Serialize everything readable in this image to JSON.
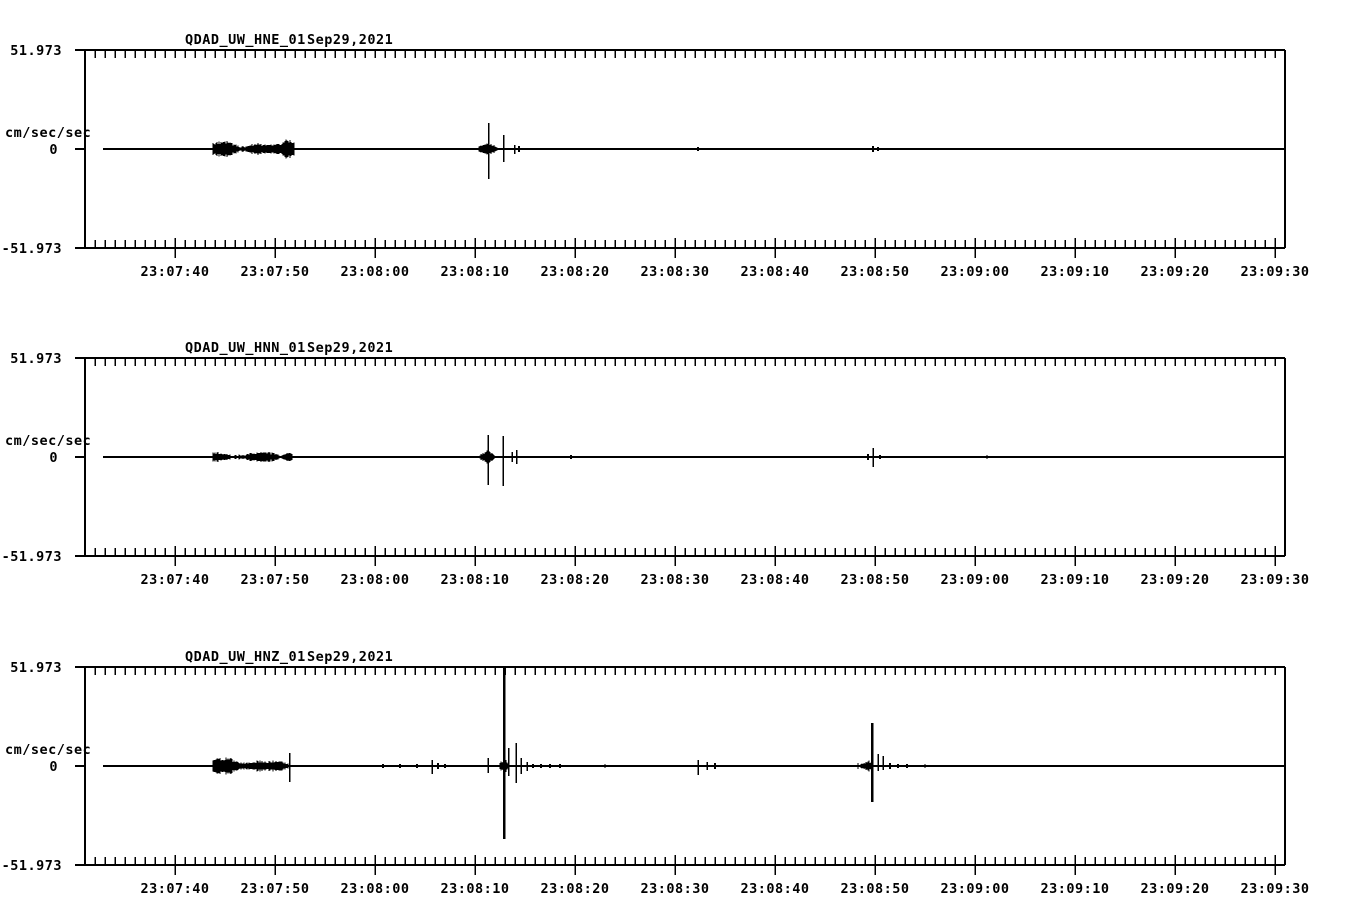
{
  "figure": {
    "background": "#ffffff",
    "foreground": "#000000",
    "kind": "seismic-acceleration-traces",
    "panels": 3
  },
  "chart_data": [
    {
      "type": "line",
      "station": "QDAD_UW_HNE_01",
      "date": "Sep29,2021",
      "ylabel": "cm/sec/sec",
      "yticks": [
        "51.973",
        "0",
        "-51.973"
      ],
      "ylim": [
        -51.973,
        51.973
      ],
      "x_window": [
        "23:07:31",
        "23:09:31"
      ],
      "x_minor_step_sec": 1,
      "x_major_step_sec": 10,
      "grid": false,
      "x_tick_labels": [
        "23:07:40",
        "23:07:50",
        "23:08:00",
        "23:08:10",
        "23:08:20",
        "23:08:30",
        "23:08:40",
        "23:08:50",
        "23:09:00",
        "23:09:10",
        "23:09:20",
        "23:09:30"
      ],
      "trace": {
        "noise": [
          {
            "t1": 12.8,
            "t2": 20.9,
            "amp": 2.6,
            "bumps": [
              {
                "t": 13.4,
                "amp": 5.0,
                "w": 1.2
              },
              {
                "t": 14.3,
                "amp": 3.5,
                "w": 0.8
              },
              {
                "t": 17.3,
                "amp": 4.0,
                "w": 1.0
              },
              {
                "t": 18.9,
                "amp": 3.0,
                "w": 0.8
              },
              {
                "t": 20.0,
                "amp": 3.0,
                "w": 0.6
              },
              {
                "t": 20.5,
                "amp": 6.0,
                "w": 0.7
              }
            ]
          },
          {
            "t1": 39.4,
            "t2": 41.2,
            "amp": 3.2,
            "bumps": [
              {
                "t": 40.3,
                "amp": 4.5,
                "w": 0.5
              }
            ]
          }
        ],
        "spikes": [
          {
            "t": 40.35,
            "up": 26,
            "down": 30
          },
          {
            "t": 41.85,
            "up": 14,
            "down": 13
          },
          {
            "t": 42.95,
            "up": 4,
            "down": 5
          }
        ],
        "blips": [
          {
            "t": 43.4,
            "amp": 3
          },
          {
            "t": 61.3,
            "amp": 2
          },
          {
            "t": 78.8,
            "amp": 3
          },
          {
            "t": 79.3,
            "amp": 2
          }
        ]
      }
    },
    {
      "type": "line",
      "station": "QDAD_UW_HNN_01",
      "date": "Sep29,2021",
      "ylabel": "cm/sec/sec",
      "yticks": [
        "51.973",
        "0",
        "-51.973"
      ],
      "ylim": [
        -51.973,
        51.973
      ],
      "x_window": [
        "23:07:31",
        "23:09:31"
      ],
      "x_minor_step_sec": 1,
      "x_major_step_sec": 10,
      "grid": false,
      "x_tick_labels": [
        "23:07:40",
        "23:07:50",
        "23:08:00",
        "23:08:10",
        "23:08:20",
        "23:08:30",
        "23:08:40",
        "23:08:50",
        "23:09:00",
        "23:09:10",
        "23:09:20",
        "23:09:30"
      ],
      "trace": {
        "noise": [
          {
            "t1": 12.8,
            "t2": 20.7,
            "amp": 2.2,
            "bumps": [
              {
                "t": 13.3,
                "amp": 3.5,
                "w": 1.0
              },
              {
                "t": 17.2,
                "amp": 3.0,
                "w": 1.0
              },
              {
                "t": 18.5,
                "amp": 2.8,
                "w": 0.7
              },
              {
                "t": 20.4,
                "amp": 2.8,
                "w": 0.5
              }
            ]
          },
          {
            "t1": 39.5,
            "t2": 40.9,
            "amp": 2.8,
            "bumps": [
              {
                "t": 40.25,
                "amp": 5.0,
                "w": 0.5
              }
            ]
          }
        ],
        "spikes": [
          {
            "t": 40.3,
            "up": 22,
            "down": 28
          },
          {
            "t": 41.8,
            "up": 21,
            "down": 29
          },
          {
            "t": 42.7,
            "up": 5,
            "down": 5
          },
          {
            "t": 43.15,
            "up": 7,
            "down": 7
          },
          {
            "t": 78.8,
            "up": 9,
            "down": 10
          }
        ],
        "blips": [
          {
            "t": 48.6,
            "amp": 2
          },
          {
            "t": 78.3,
            "amp": 3
          },
          {
            "t": 79.5,
            "amp": 2
          },
          {
            "t": 90.2,
            "amp": 1.5
          }
        ]
      }
    },
    {
      "type": "line",
      "station": "QDAD_UW_HNZ_01",
      "date": "Sep29,2021",
      "ylabel": "cm/sec/sec",
      "yticks": [
        "51.973",
        "0",
        "-51.973"
      ],
      "ylim": [
        -51.973,
        51.973
      ],
      "x_window": [
        "23:07:31",
        "23:09:31"
      ],
      "x_minor_step_sec": 1,
      "x_major_step_sec": 10,
      "grid": false,
      "x_tick_labels": [
        "23:07:40",
        "23:07:50",
        "23:08:00",
        "23:08:10",
        "23:08:20",
        "23:08:30",
        "23:08:40",
        "23:08:50",
        "23:09:00",
        "23:09:10",
        "23:09:20",
        "23:09:30"
      ],
      "trace": {
        "noise": [
          {
            "t1": 12.8,
            "t2": 20.3,
            "amp": 2.6,
            "bumps": [
              {
                "t": 13.4,
                "amp": 5.5,
                "w": 1.4
              },
              {
                "t": 14.6,
                "amp": 3.5,
                "w": 0.8
              },
              {
                "t": 17.3,
                "amp": 3.2,
                "w": 1.2
              },
              {
                "t": 19.2,
                "amp": 3.2,
                "w": 1.0
              }
            ]
          },
          {
            "t1": 41.5,
            "t2": 42.3,
            "amp": 3.0,
            "bumps": [
              {
                "t": 41.9,
                "amp": 6.0,
                "w": 0.25
              }
            ]
          },
          {
            "t1": 77.3,
            "t2": 78.6,
            "amp": 2.8,
            "bumps": [
              {
                "t": 78.4,
                "amp": 4.5,
                "w": 0.3
              }
            ]
          }
        ],
        "spikes": [
          {
            "t": 20.45,
            "up": 13,
            "down": 16
          },
          {
            "t": 34.7,
            "up": 6,
            "down": 8
          },
          {
            "t": 40.3,
            "up": 8,
            "down": 7
          },
          {
            "t": 41.9,
            "up": 99,
            "down": 73,
            "w": 2
          },
          {
            "t": 42.35,
            "up": 18,
            "down": 10
          },
          {
            "t": 43.1,
            "up": 23,
            "down": 17
          },
          {
            "t": 43.6,
            "up": 8,
            "down": 8
          },
          {
            "t": 44.2,
            "up": 4,
            "down": 5
          },
          {
            "t": 61.3,
            "up": 6,
            "down": 9
          },
          {
            "t": 62.2,
            "up": 4,
            "down": 4
          },
          {
            "t": 78.7,
            "up": 43,
            "down": 36,
            "w": 2
          },
          {
            "t": 79.3,
            "up": 12,
            "down": 5
          },
          {
            "t": 79.8,
            "up": 10,
            "down": 4
          }
        ],
        "blips": [
          {
            "t": 29.8,
            "amp": 2
          },
          {
            "t": 31.5,
            "amp": 2
          },
          {
            "t": 33.2,
            "amp": 2
          },
          {
            "t": 35.3,
            "amp": 3
          },
          {
            "t": 36.0,
            "amp": 2
          },
          {
            "t": 44.8,
            "amp": 2
          },
          {
            "t": 45.6,
            "amp": 2
          },
          {
            "t": 46.5,
            "amp": 2
          },
          {
            "t": 47.5,
            "amp": 2
          },
          {
            "t": 52.0,
            "amp": 1.5
          },
          {
            "t": 63.0,
            "amp": 3
          },
          {
            "t": 80.5,
            "amp": 3
          },
          {
            "t": 81.3,
            "amp": 2
          },
          {
            "t": 82.2,
            "amp": 2
          },
          {
            "t": 84.0,
            "amp": 1.5
          }
        ]
      }
    }
  ]
}
